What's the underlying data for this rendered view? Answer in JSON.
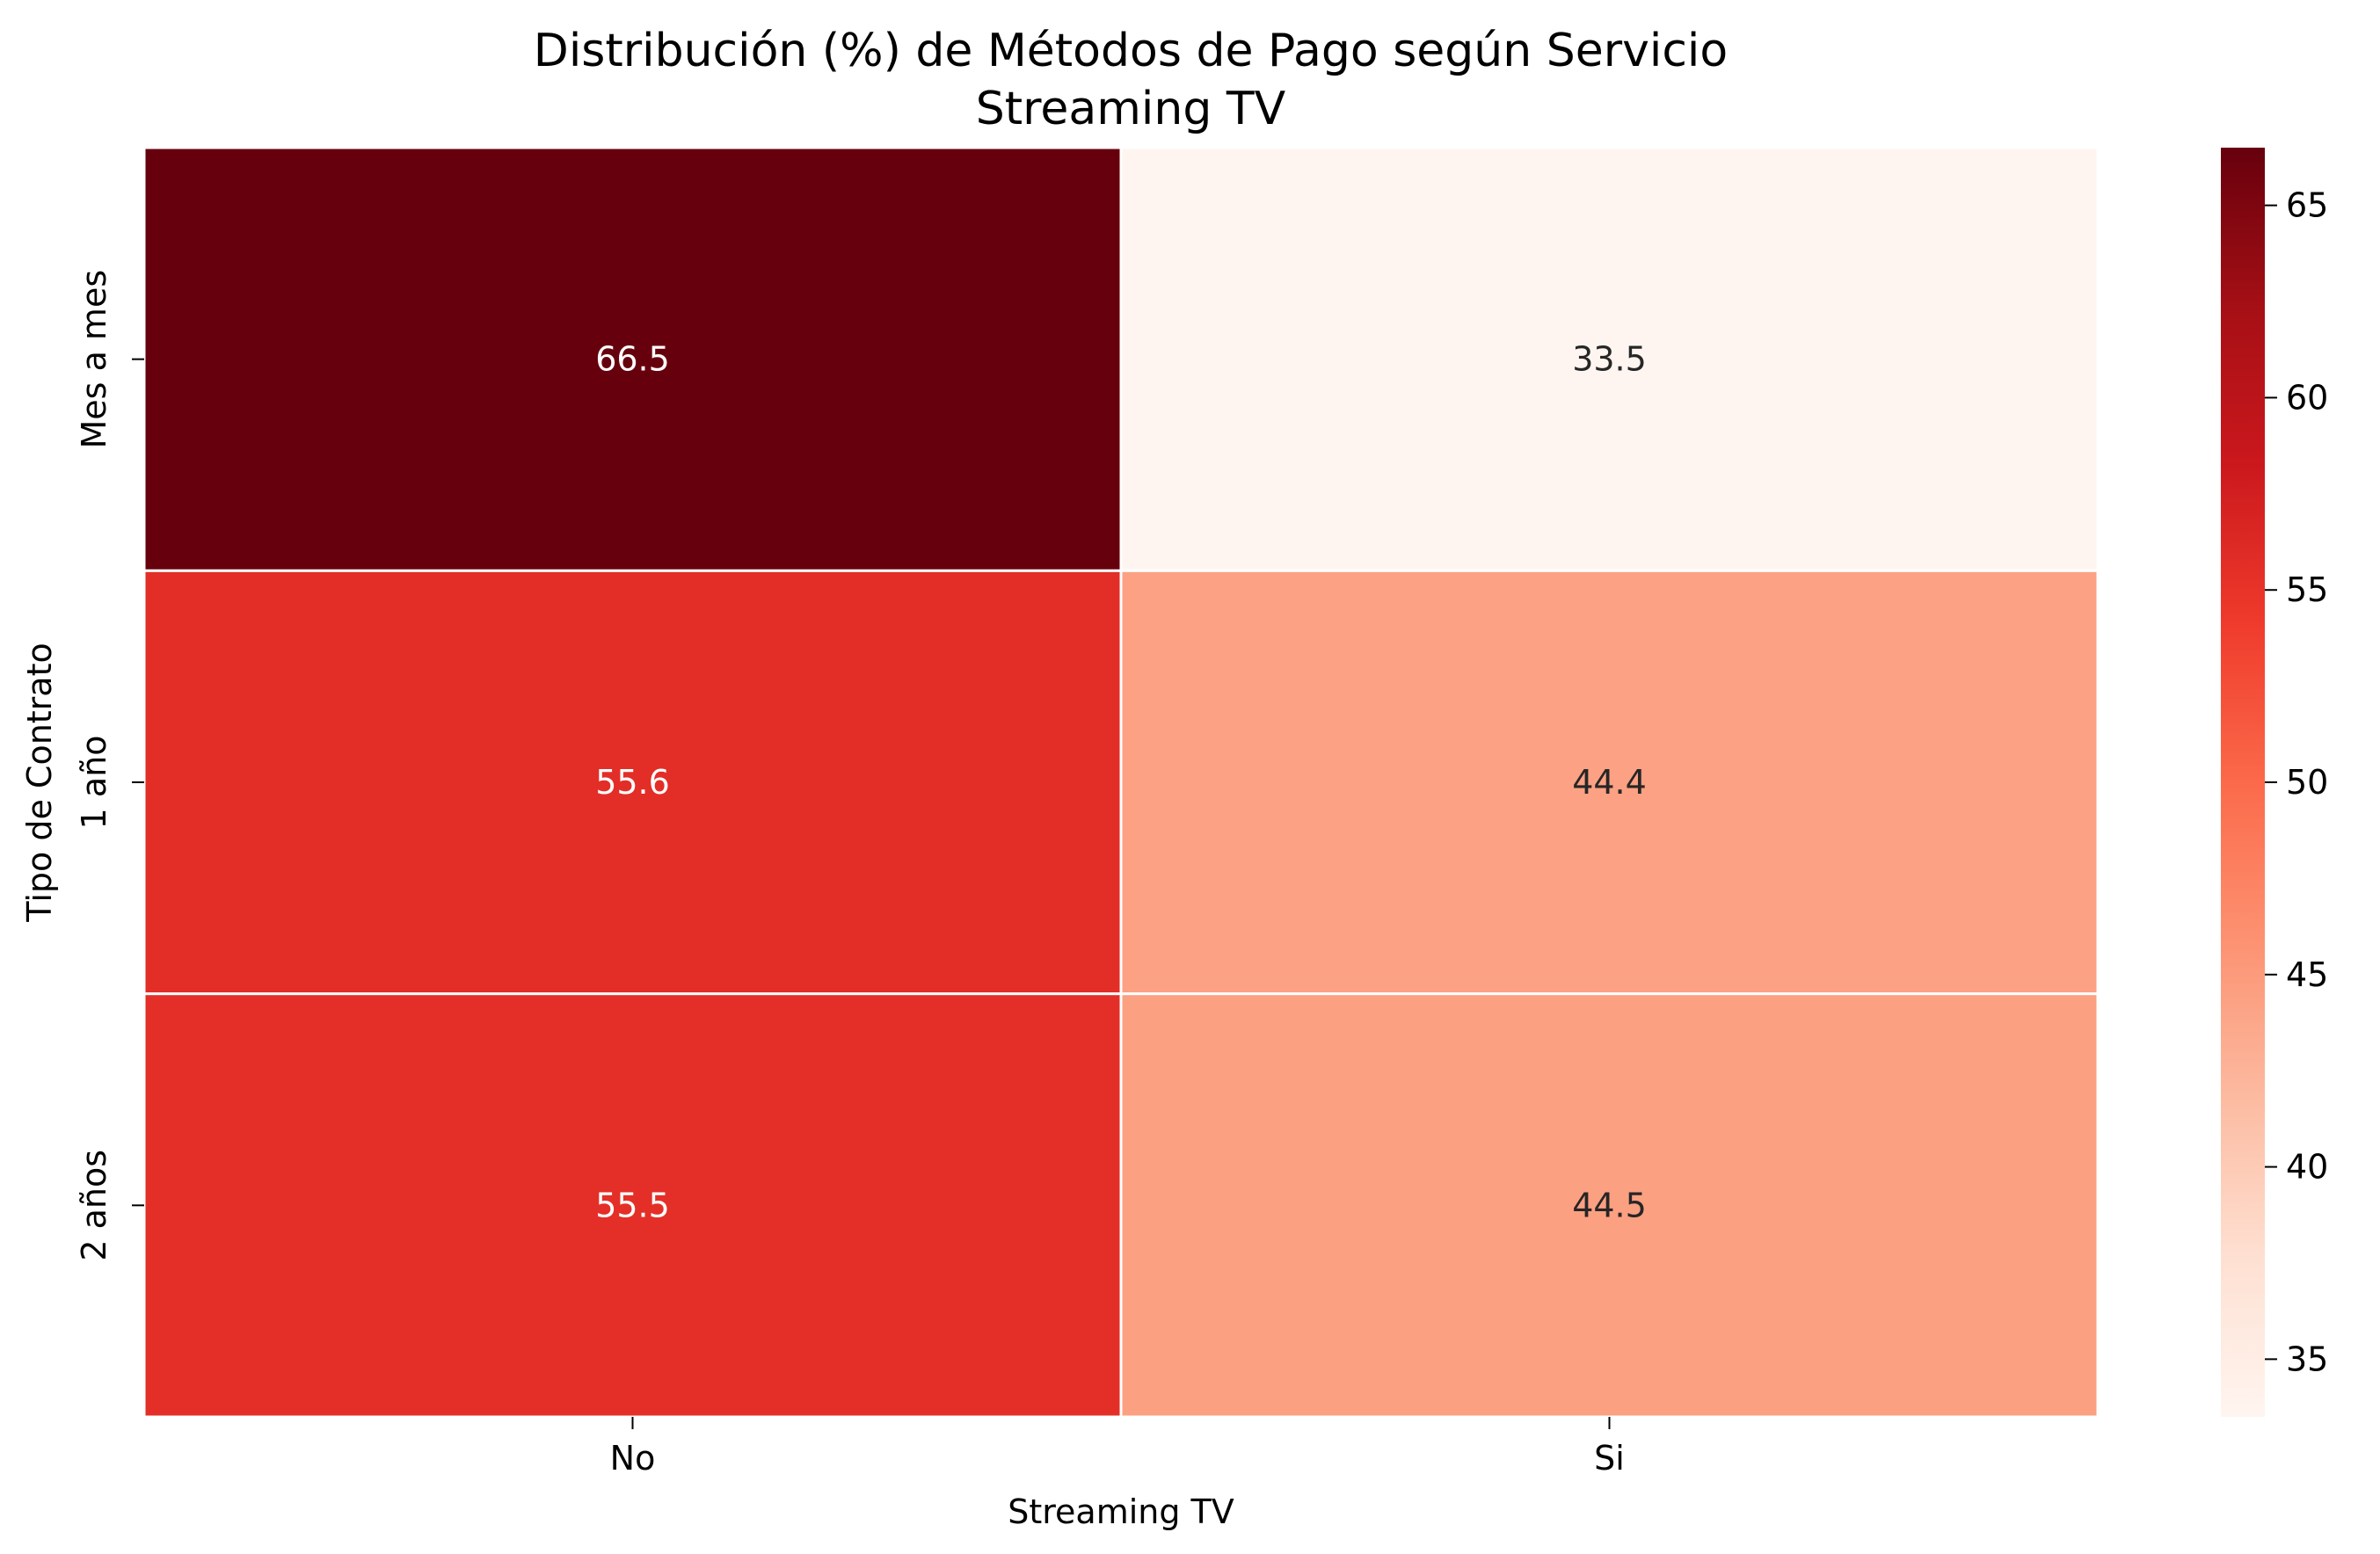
{
  "chart_data": {
    "type": "heatmap",
    "title": "Distribución (%) de Métodos de Pago según Servicio\nStreaming TV",
    "xlabel": "Streaming TV",
    "ylabel": "Tipo de Contrato",
    "x_categories": [
      "No",
      "Si"
    ],
    "y_categories": [
      "Mes a mes",
      "1 año",
      "2 años"
    ],
    "values": [
      [
        66.5,
        33.5
      ],
      [
        55.6,
        44.4
      ],
      [
        55.5,
        44.5
      ]
    ],
    "value_labels": [
      [
        "66.5",
        "33.5"
      ],
      [
        "55.6",
        "44.4"
      ],
      [
        "55.5",
        "44.5"
      ]
    ],
    "colormap": "Reds",
    "colorbar": {
      "min": 33.5,
      "max": 66.5,
      "ticks": [
        35,
        40,
        45,
        50,
        55,
        60,
        65
      ]
    },
    "grid": false
  },
  "colors": {
    "cell_border": "#ffffff",
    "text_light": "#ffffff",
    "text_dark": "#262626"
  }
}
